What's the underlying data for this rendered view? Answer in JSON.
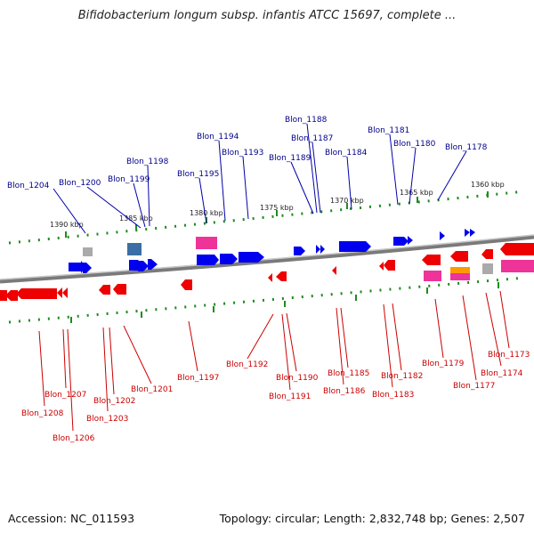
{
  "title": "Bifidobacterium longum subsp. infantis ATCC 15697, complete ...",
  "accession": "Accession: NC_011593",
  "summary": "Topology: circular; Length: 2,832,748 bp; Genes: 2,507",
  "colors": {
    "forward_strand": "#0000ee",
    "reverse_strand": "#ee0000",
    "label_forward": "#00008b",
    "label_reverse": "#cc0000",
    "rna": "#ee3399",
    "pseudo": "#aaaaaa",
    "other": "#ff9900",
    "backbone": "#808080",
    "tick": "#1e8c1e"
  },
  "scale_labels": [
    "1390 kbp",
    "1385 kbp",
    "1380 kbp",
    "1375 kbp",
    "1370 kbp",
    "1365 kbp",
    "1360 kbp"
  ],
  "forward_labels": [
    "Blon_1204",
    "Blon_1200",
    "Blon_1199",
    "Blon_1198",
    "Blon_1195",
    "Blon_1194",
    "Blon_1193",
    "Blon_1189",
    "Blon_1188",
    "Blon_1187",
    "Blon_1184",
    "Blon_1181",
    "Blon_1180",
    "Blon_1178"
  ],
  "reverse_labels": [
    "Blon_1208",
    "Blon_1207",
    "Blon_1206",
    "Blon_1203",
    "Blon_1202",
    "Blon_1201",
    "Blon_1197",
    "Blon_1192",
    "Blon_1191",
    "Blon_1190",
    "Blon_1186",
    "Blon_1185",
    "Blon_1183",
    "Blon_1182",
    "Blon_1179",
    "Blon_1177",
    "Blon_1174",
    "Blon_1173"
  ]
}
